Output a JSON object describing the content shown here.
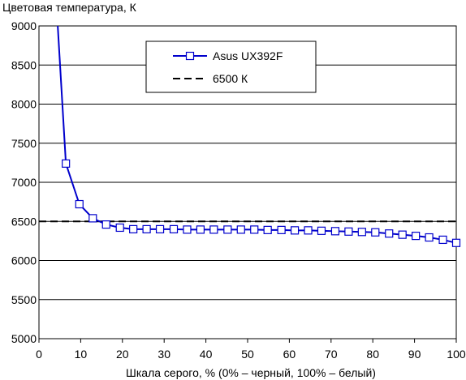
{
  "chart_data": {
    "type": "line",
    "title": "Цветовая температура, К",
    "xlabel": "Шкала серого, % (0% – черный, 100% – белый)",
    "ylabel": "",
    "xlim": [
      0,
      100
    ],
    "ylim": [
      5000,
      9000
    ],
    "x_ticks": [
      "0",
      "10",
      "20",
      "30",
      "40",
      "50",
      "60",
      "70",
      "80",
      "90",
      "100"
    ],
    "y_ticks": [
      "5000",
      "5500",
      "6000",
      "6500",
      "7000",
      "7500",
      "8000",
      "8500",
      "9000"
    ],
    "grid": "horizontal",
    "legend_position": "top-center",
    "series": [
      {
        "name": "Asus UX392F",
        "color": "#0000cc",
        "marker": "square-open",
        "x": [
          6.45,
          9.68,
          12.9,
          16.1,
          19.4,
          22.6,
          25.8,
          29.0,
          32.3,
          35.5,
          38.7,
          41.9,
          45.2,
          48.4,
          51.6,
          54.8,
          58.1,
          61.3,
          64.5,
          67.7,
          71.0,
          74.2,
          77.4,
          80.6,
          83.9,
          87.1,
          90.3,
          93.5,
          96.8,
          100
        ],
        "y": [
          7240,
          6720,
          6540,
          6460,
          6420,
          6400,
          6400,
          6400,
          6400,
          6395,
          6395,
          6395,
          6395,
          6395,
          6395,
          6390,
          6390,
          6385,
          6385,
          6380,
          6375,
          6370,
          6365,
          6360,
          6345,
          6330,
          6315,
          6295,
          6265,
          6225
        ],
        "line_extension": {
          "x": [
            4.5,
            6.45
          ],
          "y": [
            9000,
            7240
          ]
        }
      },
      {
        "name": "6500 К",
        "color": "#000000",
        "style": "dashed",
        "x": [
          0,
          100
        ],
        "y": [
          6500,
          6500
        ]
      }
    ]
  }
}
